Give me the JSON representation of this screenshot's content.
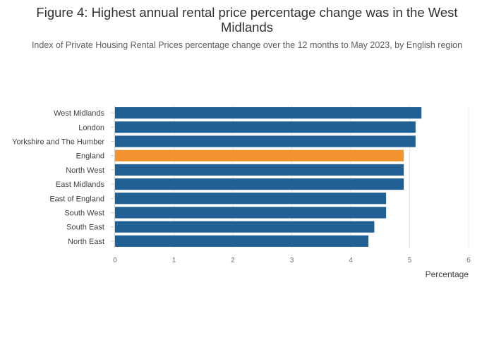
{
  "header": {
    "title": "Figure 4: Highest annual rental price percentage change was in the West Midlands",
    "subtitle": "Index of Private Housing Rental Prices percentage change over the 12 months to May 2023, by English region"
  },
  "chart_data": {
    "type": "bar",
    "orientation": "horizontal",
    "categories": [
      "West Midlands",
      "London",
      "Yorkshire and The Humber",
      "England",
      "North West",
      "East Midlands",
      "East of England",
      "South West",
      "South East",
      "North East"
    ],
    "values": [
      5.2,
      5.1,
      5.1,
      4.9,
      4.9,
      4.9,
      4.6,
      4.6,
      4.4,
      4.3
    ],
    "highlight": "England",
    "colors": {
      "bar": "#206095",
      "highlight": "#f39431"
    },
    "xlabel": "Percentage",
    "xlim": [
      0,
      6
    ],
    "xticks": [
      "0",
      "1",
      "2",
      "3",
      "4",
      "5",
      "6"
    ],
    "grid": true
  }
}
